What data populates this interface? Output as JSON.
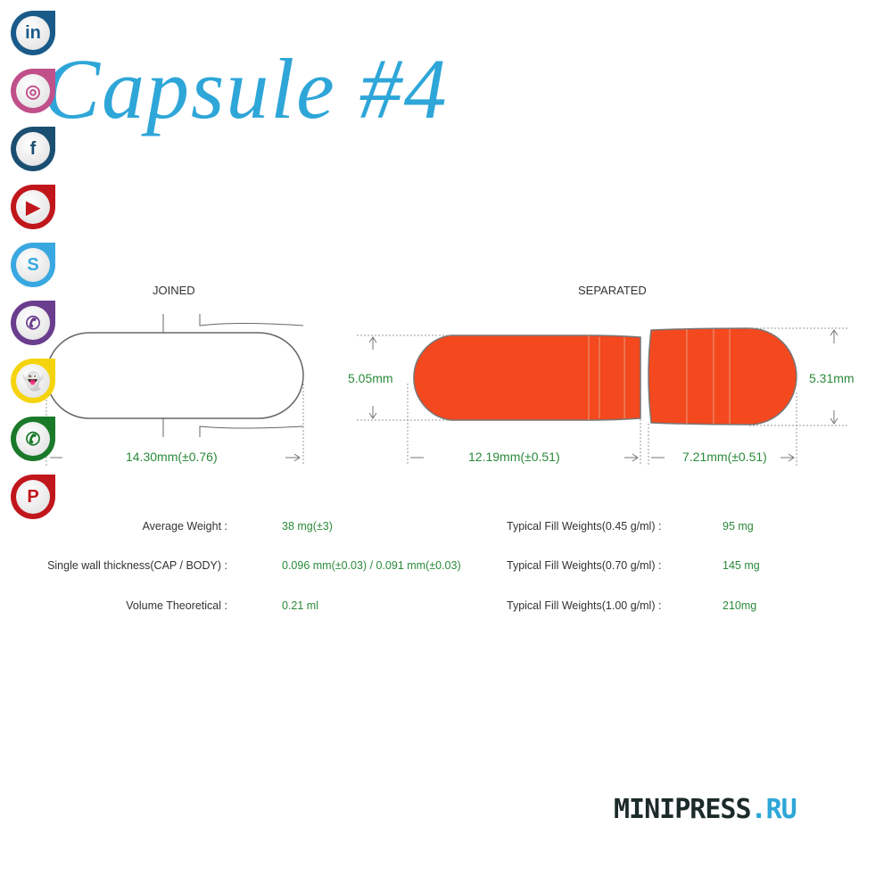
{
  "title": "Capsule #4",
  "social": [
    {
      "name": "linkedin",
      "glyph": "in",
      "color": "#1a5a8a"
    },
    {
      "name": "instagram",
      "glyph": "◎",
      "color": "#c0508a"
    },
    {
      "name": "facebook",
      "glyph": "f",
      "color": "#1b4f72"
    },
    {
      "name": "youtube",
      "glyph": "▶",
      "color": "#c0161c"
    },
    {
      "name": "skype",
      "glyph": "S",
      "color": "#3aa8e0"
    },
    {
      "name": "viber",
      "glyph": "✆",
      "color": "#6a3d8e"
    },
    {
      "name": "snapchat",
      "glyph": "👻",
      "color": "#f5d40f"
    },
    {
      "name": "whatsapp",
      "glyph": "✆",
      "color": "#1a7a2a"
    },
    {
      "name": "pinterest",
      "glyph": "P",
      "color": "#c0161c"
    }
  ],
  "diagram": {
    "joined_label": "JOINED",
    "separated_label": "SEPARATED",
    "joined_length": "14.30mm(±0.76)",
    "body_diameter": "5.05mm",
    "cap_diameter": "5.31mm",
    "body_length": "12.19mm(±0.51)",
    "cap_length": "7.21mm(±0.51)",
    "capsule_color": "#f4481e"
  },
  "specs_left": [
    {
      "label": "Average Weight :",
      "value": "38 mg(±3)"
    },
    {
      "label": "Single wall thickness(CAP / BODY) :",
      "value": "0.096 mm(±0.03) / 0.091 mm(±0.03)"
    },
    {
      "label": "Volume Theoretical :",
      "value": "0.21 ml"
    }
  ],
  "specs_right": [
    {
      "label": "Typical Fill Weights(0.45 g/ml) :",
      "value": "95 mg"
    },
    {
      "label": "Typical Fill Weights(0.70 g/ml) :",
      "value": "145 mg"
    },
    {
      "label": "Typical Fill Weights(1.00 g/ml) :",
      "value": "210mg"
    }
  ],
  "logo": {
    "main": "MINIPRESS",
    "suffix": ".RU"
  }
}
